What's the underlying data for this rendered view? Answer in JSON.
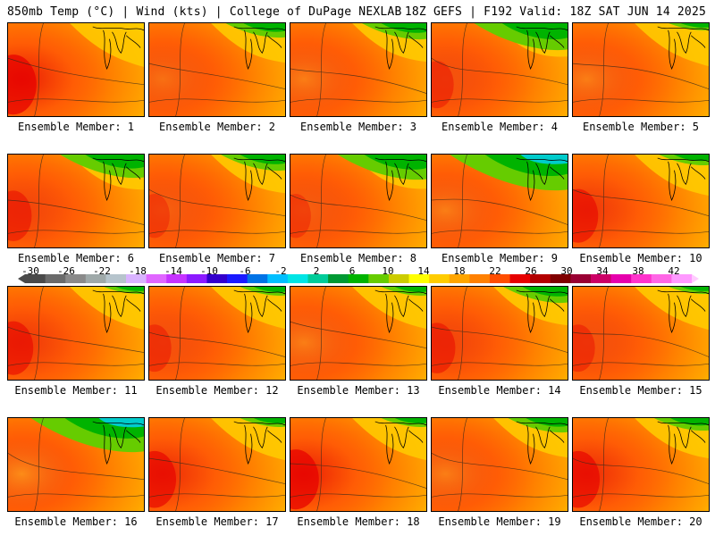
{
  "header": {
    "left": "850mb Temp (°C) | Wind (kts) | College of DuPage NEXLAB",
    "right": "18Z GEFS | F192 Valid: 18Z SAT JUN 14 2025"
  },
  "colorbar": {
    "labels": [
      "-30",
      "-26",
      "-22",
      "-18",
      "-14",
      "-10",
      "-6",
      "-2",
      "2",
      "6",
      "10",
      "14",
      "18",
      "22",
      "26",
      "30",
      "34",
      "38",
      "42"
    ],
    "colors": [
      "#4a4a4a",
      "#6a6a6a",
      "#8a8a8a",
      "#9fa9a9",
      "#b6c4cc",
      "#d9b3ff",
      "#e066ff",
      "#c633ff",
      "#8c1aff",
      "#3300cc",
      "#1a1aff",
      "#0073e6",
      "#00bfff",
      "#00e5e5",
      "#00cc99",
      "#009933",
      "#00b300",
      "#66cc00",
      "#cccc00",
      "#ffff00",
      "#ffcc00",
      "#ffa500",
      "#ff8000",
      "#ff4d00",
      "#e60000",
      "#b30000",
      "#800000",
      "#990033",
      "#cc0066",
      "#e600ac",
      "#ff33cc",
      "#ff66e6",
      "#ff99ff"
    ]
  },
  "members": [
    {
      "label": "Ensemble Member: 1",
      "green": 0.0,
      "red": 0.9
    },
    {
      "label": "Ensemble Member: 2",
      "green": 0.25,
      "red": 0.3
    },
    {
      "label": "Ensemble Member: 3",
      "green": 0.3,
      "red": 0.2
    },
    {
      "label": "Ensemble Member: 4",
      "green": 0.6,
      "red": 0.5
    },
    {
      "label": "Ensemble Member: 5",
      "green": 0.05,
      "red": 0.2
    },
    {
      "label": "Ensemble Member: 6",
      "green": 0.5,
      "red": 0.6
    },
    {
      "label": "Ensemble Member: 7",
      "green": 0.3,
      "red": 0.4
    },
    {
      "label": "Ensemble Member: 8",
      "green": 0.55,
      "red": 0.4
    },
    {
      "label": "Ensemble Member: 9",
      "green": 0.85,
      "red": 0.2
    },
    {
      "label": "Ensemble Member: 10",
      "green": 0.15,
      "red": 0.7
    },
    {
      "label": "Ensemble Member: 11",
      "green": 0.05,
      "red": 0.7
    },
    {
      "label": "Ensemble Member: 12",
      "green": 0.1,
      "red": 0.5
    },
    {
      "label": "Ensemble Member: 13",
      "green": 0.1,
      "red": 0.2
    },
    {
      "label": "Ensemble Member: 14",
      "green": 0.3,
      "red": 0.6
    },
    {
      "label": "Ensemble Member: 15",
      "green": 0.05,
      "red": 0.5
    },
    {
      "label": "Ensemble Member: 16",
      "green": 0.8,
      "red": 0.1
    },
    {
      "label": "Ensemble Member: 17",
      "green": 0.1,
      "red": 0.8
    },
    {
      "label": "Ensemble Member: 18",
      "green": 0.1,
      "red": 0.9
    },
    {
      "label": "Ensemble Member: 19",
      "green": 0.25,
      "red": 0.2
    },
    {
      "label": "Ensemble Member: 20",
      "green": 0.2,
      "red": 0.8
    }
  ]
}
